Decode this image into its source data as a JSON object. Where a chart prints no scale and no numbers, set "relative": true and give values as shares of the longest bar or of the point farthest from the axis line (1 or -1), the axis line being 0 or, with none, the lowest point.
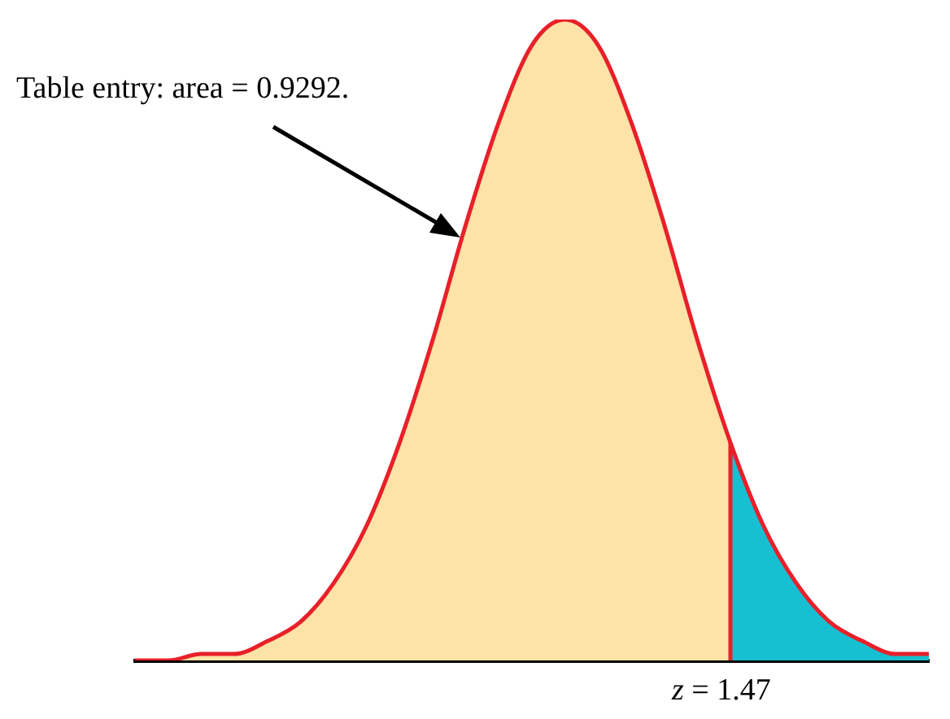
{
  "chart_data": {
    "type": "area",
    "relative": true,
    "categories": [
      null,
      null,
      null,
      null,
      null,
      null,
      null,
      null,
      null,
      null,
      null,
      null,
      null,
      null,
      null,
      null,
      null,
      null,
      null,
      null,
      null,
      null,
      null,
      null,
      null
    ],
    "series": [
      {
        "type": "line",
        "color": "#e8202a",
        "values": [
          0,
          0,
          0.01,
          0.01,
          0.03,
          0.06,
          0.12,
          0.21,
          0.34,
          0.5,
          0.68,
          0.84,
          0.96,
          1,
          0.96,
          0.84,
          0.68,
          0.5,
          0.34,
          0.21,
          0.12,
          0.06,
          0.03,
          0.01,
          0.01
        ]
      },
      {
        "color": "#fde3a7",
        "values": [
          0,
          0,
          0.01,
          0.01,
          0.03,
          0.06,
          0.12,
          0.21,
          0.34,
          0.5,
          0.68,
          0.84,
          0.96,
          1,
          0.96,
          0.84,
          0.68,
          0.5,
          0.34,
          null,
          null,
          null,
          null,
          null,
          null
        ]
      },
      {
        "color": "#17bfd2",
        "values": [
          null,
          null,
          null,
          null,
          null,
          null,
          null,
          null,
          null,
          null,
          null,
          null,
          null,
          null,
          null,
          null,
          null,
          null,
          0.34,
          0.21,
          0.12,
          0.06,
          0.03,
          0.01,
          0.01
        ]
      }
    ],
    "annotations": [
      "Table entry: area = 0.9292.",
      "z = 1.47"
    ],
    "grid": false,
    "legend": false
  }
}
